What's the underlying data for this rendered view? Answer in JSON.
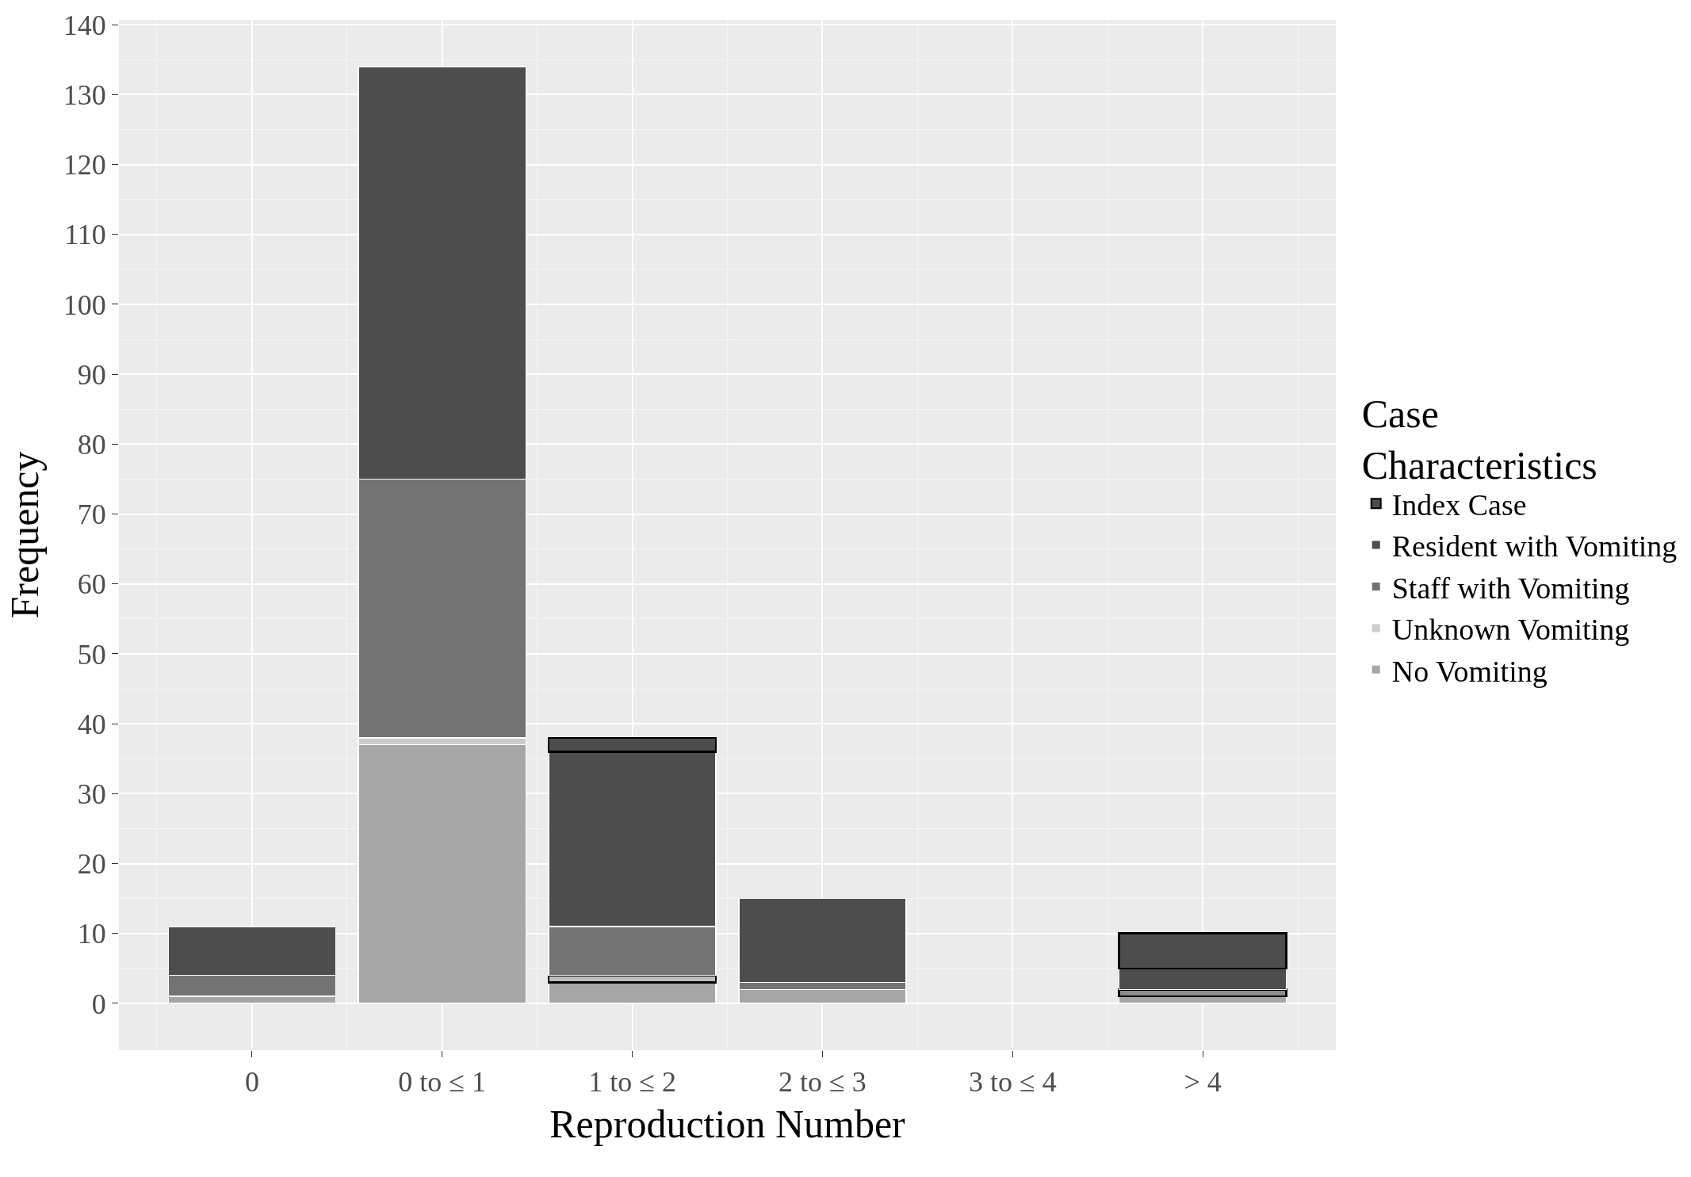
{
  "chart_data": {
    "type": "bar",
    "stacked": true,
    "xlabel": "Reproduction Number",
    "ylabel": "Frequency",
    "legend_title": "Case\nCharacteristics",
    "legend": "right",
    "grid": true,
    "categories": [
      "0",
      "0 to ≤ 1",
      "1 to ≤ 2",
      "2 to ≤ 3",
      "3 to ≤ 4",
      "> 4"
    ],
    "ylim": [
      -6.7,
      140.7
    ],
    "yticks": [
      0,
      10,
      20,
      30,
      40,
      50,
      60,
      70,
      80,
      90,
      100,
      110,
      120,
      130,
      140
    ],
    "series": [
      {
        "name": "No Vomiting",
        "color": "#a6a6a6",
        "values": [
          1,
          37,
          3,
          2,
          null,
          1
        ]
      },
      {
        "name": "Unknown Vomiting",
        "color": "#cccccc",
        "values": [
          null,
          1,
          null,
          null,
          null,
          null
        ]
      },
      {
        "color": "#000000",
        "colors": [
          null,
          null,
          "#bdbdbd",
          null,
          null,
          "#8c8c8c"
        ],
        "values": [
          null,
          null,
          1,
          null,
          null,
          1
        ]
      },
      {
        "name": "Staff with Vomiting",
        "color": "#737373",
        "values": [
          3,
          37,
          7,
          1,
          null,
          null
        ]
      },
      {
        "name": "Resident with Vomiting",
        "color": "#4d4d4d",
        "values": [
          7,
          59,
          25,
          12,
          null,
          3
        ]
      },
      {
        "name": "Index Case",
        "color": "#4d4d4d",
        "colors": [
          null,
          null,
          "#4d4d4d",
          null,
          null,
          "#4d4d4d"
        ],
        "values": [
          null,
          null,
          2,
          null,
          null,
          5
        ]
      }
    ]
  }
}
